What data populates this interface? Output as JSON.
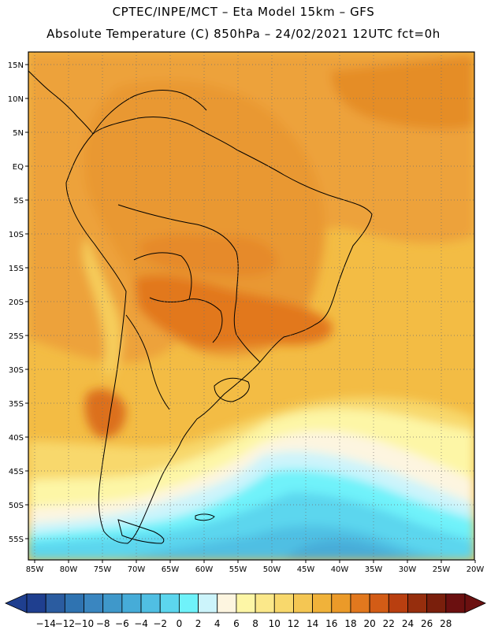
{
  "header": {
    "line1": "CPTEC/INPE/MCT –  Eta Model 15km – GFS",
    "line2": "Absolute Temperature (C) 850hPa – 24/02/2021 12UTC fct=0h"
  },
  "axes": {
    "lat_labels": [
      "15N",
      "10N",
      "5N",
      "EQ",
      "5S",
      "10S",
      "15S",
      "20S",
      "25S",
      "30S",
      "35S",
      "40S",
      "45S",
      "50S",
      "55S"
    ],
    "lon_labels": [
      "85W",
      "80W",
      "75W",
      "70W",
      "65W",
      "60W",
      "55W",
      "50W",
      "45W",
      "40W",
      "35W",
      "30W",
      "25W",
      "20W"
    ]
  },
  "colorbar": {
    "labels": [
      "-14",
      "-12",
      "-10",
      "-8",
      "-6",
      "-4",
      "-2",
      "0",
      "2",
      "4",
      "6",
      "8",
      "10",
      "12",
      "14",
      "16",
      "18",
      "20",
      "22",
      "24",
      "26",
      "28"
    ],
    "colors": [
      "#1f3f8f",
      "#2b5ca0",
      "#2f73b1",
      "#3a86c0",
      "#3f98ca",
      "#46acd8",
      "#50bfe3",
      "#5cd6ee",
      "#6ff2fa",
      "#ccf4fb",
      "#fdf5e0",
      "#fdf6a6",
      "#fbe88a",
      "#f8d86c",
      "#f4c653",
      "#f0b23a",
      "#eb9a29",
      "#e2781e",
      "#d35c16",
      "#b93f10",
      "#962e0d",
      "#7a1f0c",
      "#6b1010"
    ]
  },
  "map_colors": {
    "land_border": "#000000",
    "ocean_warm": "#f1b43b",
    "tropics": "#eda23a",
    "hot_core": "#e2781e",
    "cold_water": "#5cd6ee"
  }
}
